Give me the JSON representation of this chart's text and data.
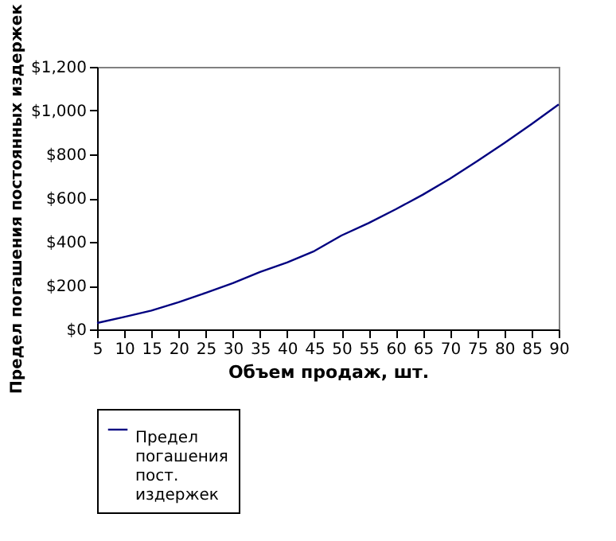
{
  "chart_data": {
    "type": "line",
    "xlabel": "Объем продаж, шт.",
    "ylabel": "Предел погашения постоянных издержек",
    "x": [
      5,
      10,
      15,
      20,
      25,
      30,
      35,
      40,
      45,
      50,
      55,
      60,
      65,
      70,
      75,
      80,
      85,
      90
    ],
    "series": [
      {
        "name": "Предел погашения пост. издержек",
        "color": "#000080",
        "values": [
          29,
          57,
          86,
          124,
          167,
          211,
          262,
          306,
          358,
          429,
          486,
          549,
          616,
          689,
          769,
          852,
          938,
          1028
        ]
      }
    ],
    "xlim": [
      5,
      90
    ],
    "xticks": [
      5,
      10,
      15,
      20,
      25,
      30,
      35,
      40,
      45,
      50,
      55,
      60,
      65,
      70,
      75,
      80,
      85,
      90
    ],
    "ylim": [
      0,
      1200
    ],
    "yticks": [
      {
        "value": 0,
        "label": "$0"
      },
      {
        "value": 200,
        "label": "$200"
      },
      {
        "value": 400,
        "label": "$400"
      },
      {
        "value": 600,
        "label": "$600"
      },
      {
        "value": 800,
        "label": "$800"
      },
      {
        "value": 1000,
        "label": "$1,000"
      },
      {
        "value": 1200,
        "label": "$1,200"
      }
    ],
    "grid": false,
    "legend": "bottom",
    "marker": "none",
    "line_style": "solid"
  }
}
